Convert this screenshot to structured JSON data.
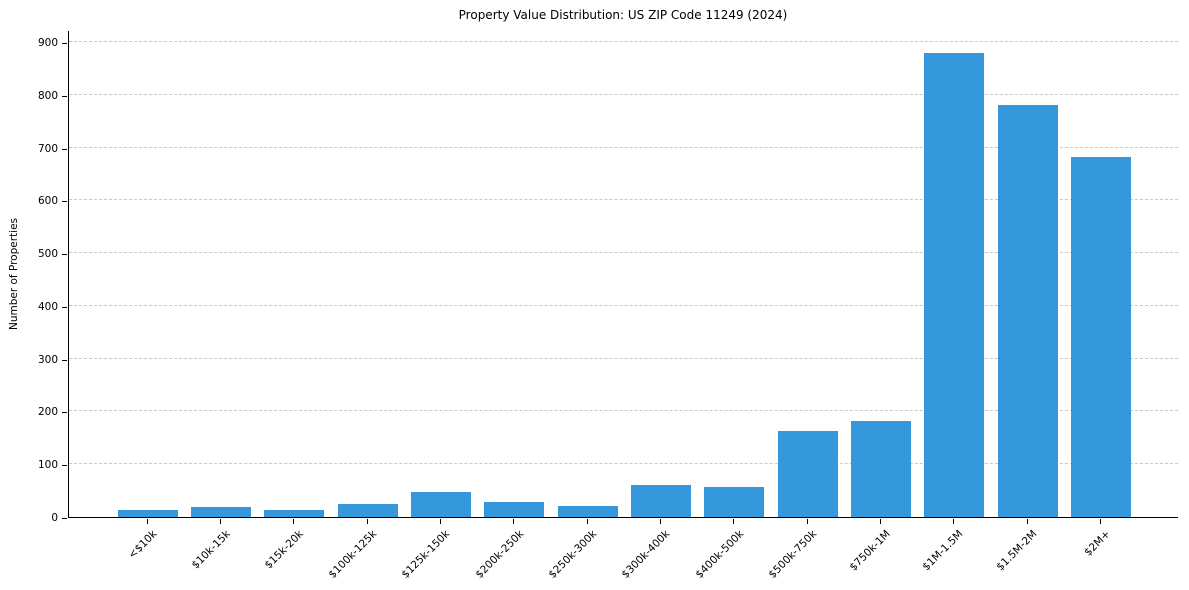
{
  "chart_data": {
    "type": "bar",
    "title": "Property Value Distribution: US ZIP Code 11249 (2024)",
    "ylabel": "Number of Properties",
    "xlabel": "",
    "categories": [
      "<$10k",
      "$10k-15k",
      "$15k-20k",
      "$100k-125k",
      "$125k-150k",
      "$200k-250k",
      "$250k-300k",
      "$300k-400k",
      "$400k-500k",
      "$500k-750k",
      "$750k-1M",
      "$1M-1.5M",
      "$1.5M-2M",
      "$2M+"
    ],
    "values": [
      13,
      19,
      13,
      24,
      47,
      28,
      21,
      60,
      56,
      163,
      182,
      880,
      781,
      683
    ],
    "yticks": [
      0,
      100,
      200,
      300,
      400,
      500,
      600,
      700,
      800,
      900
    ],
    "ylim": [
      0,
      923
    ],
    "bar_color": "#3498db",
    "grid": "horizontal-dashed",
    "gridline_color": "#c9c9c9",
    "axis_color": "#000000",
    "background_color": "#ffffff",
    "legend": "none"
  }
}
